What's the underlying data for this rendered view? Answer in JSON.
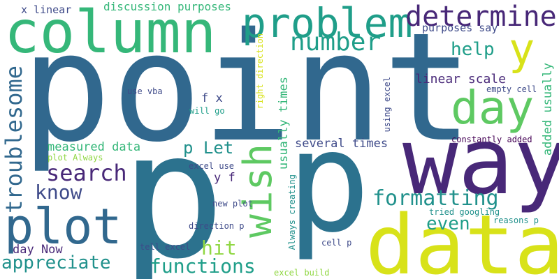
{
  "words": {
    "point": "point",
    "p_big": "p",
    "p_second": "p",
    "way": "way",
    "data": "data",
    "column": "column",
    "problem": "problem",
    "determine": "determine",
    "day": "day",
    "y": "y",
    "wish": "wish",
    "plot": "plot",
    "number": "number",
    "search": "search",
    "troublesome": "troublesome",
    "know": "know",
    "formatting": "formatting",
    "appreciate": "appreciate",
    "functions": "functions",
    "hit": "hit",
    "even": "even",
    "help": "help",
    "p_let": "p Let",
    "measured_data": "measured data",
    "linear_scale": "linear scale",
    "several_times": "several times",
    "usually_times": "usually times",
    "added_usually": "added usually",
    "day_now": "day Now",
    "x_linear": "x linear",
    "discussion_purposes": "discussion purposes",
    "purposes_say": "purposes say",
    "f_x": "f x",
    "y_f": "y f",
    "use_vba": "use vba",
    "will_go": "will go",
    "empty_cell": "empty cell",
    "constantly_added": "constantly added",
    "using_excel": "using excel",
    "right_direction": "right direction",
    "plot_always": "plot Always",
    "excel_use": "excel use",
    "new_plot": "new plot",
    "tried_googling": "tried googling",
    "direction_p": "direction p",
    "reasons_p": "reasons p",
    "tell_excel": "tell excel",
    "cell_p": "cell p",
    "always_creating": "Always creating",
    "excel_build": "excel build"
  },
  "colors": {
    "dark_blue": "#31688e",
    "blue": "#2c728e",
    "teal": "#21918c",
    "green_teal": "#1f9e89",
    "green": "#35b779",
    "light_green": "#5ec962",
    "lime": "#90d743",
    "yellow": "#d8e219",
    "purple": "#482878",
    "indigo": "#3e4a89",
    "navy": "#443983",
    "dark_purple": "#440154"
  }
}
